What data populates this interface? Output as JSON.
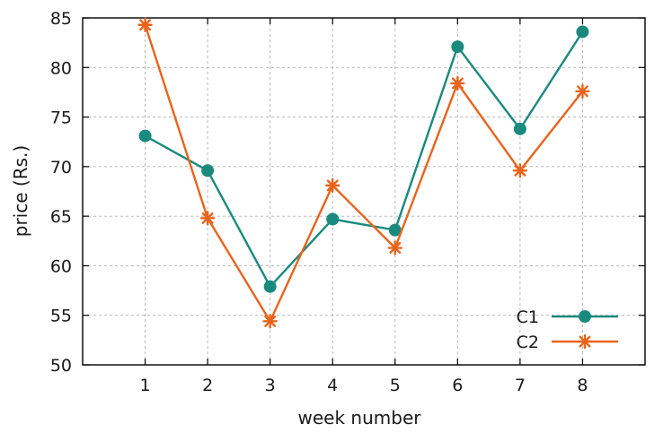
{
  "chart_data": {
    "type": "line",
    "title": "",
    "xlabel": "week number",
    "ylabel": "price (Rs.)",
    "x": [
      1,
      2,
      3,
      4,
      5,
      6,
      7,
      8
    ],
    "xlim": [
      0,
      9
    ],
    "ylim": [
      50,
      85
    ],
    "xticks": [
      1,
      2,
      3,
      4,
      5,
      6,
      7,
      8
    ],
    "yticks": [
      50,
      55,
      60,
      65,
      70,
      75,
      80,
      85
    ],
    "grid": true,
    "legend_position": "bottom-right",
    "series": [
      {
        "name": "C1",
        "marker": "circle",
        "color": "#1a8a7e",
        "values": [
          73.1,
          69.6,
          57.9,
          64.7,
          63.6,
          82.1,
          73.8,
          83.6
        ]
      },
      {
        "name": "C2",
        "marker": "star",
        "color": "#e8641b",
        "values": [
          84.3,
          64.8,
          54.4,
          68.1,
          61.8,
          78.4,
          69.6,
          77.6
        ]
      }
    ]
  }
}
